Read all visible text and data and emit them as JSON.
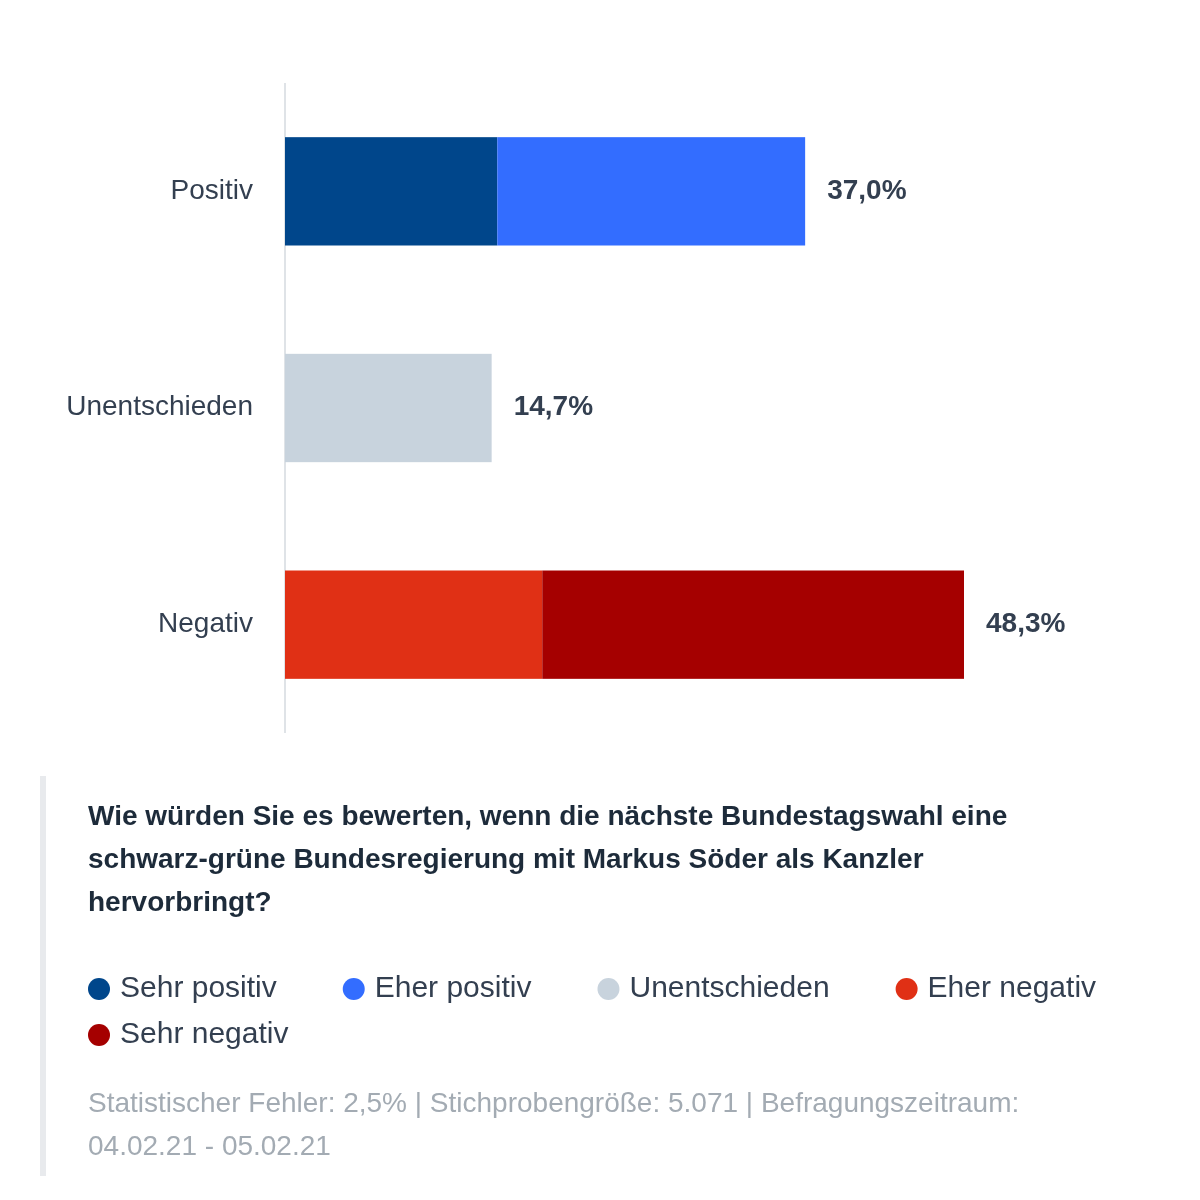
{
  "chart_data": {
    "type": "bar",
    "orientation": "horizontal",
    "stacked": true,
    "title": "Wie würden Sie es bewerten, wenn die nächste Bundestagswahl eine schwarz-grüne Bundesregierung mit Markus Söder als Kanzler hervorbringt?",
    "categories": [
      "Positiv",
      "Unentschieden",
      "Negativ"
    ],
    "series": [
      {
        "name": "Sehr positiv",
        "color": "#00468b",
        "values": [
          15.1,
          null,
          null
        ]
      },
      {
        "name": "Eher positiv",
        "color": "#336dff",
        "values": [
          21.9,
          null,
          null
        ]
      },
      {
        "name": "Unentschieden",
        "color": "#c8d3dd",
        "values": [
          null,
          14.7,
          null
        ],
        "value_labels": [
          null,
          "14,7%",
          null
        ]
      },
      {
        "name": "Eher negativ",
        "color": "#e03015",
        "values": [
          null,
          null,
          18.3
        ]
      },
      {
        "name": "Sehr negativ",
        "color": "#a50000",
        "values": [
          null,
          null,
          30.0
        ]
      }
    ],
    "totals": [
      "37,0%",
      null,
      "48,3%"
    ],
    "tick_labels": "y",
    "legend": "bottom",
    "annotations": [
      "Statistischer Fehler: 2,5% | Stichprobengröße: 5.071 | Befragungszeitraum: 04.02.21 - 05.02.21"
    ]
  }
}
